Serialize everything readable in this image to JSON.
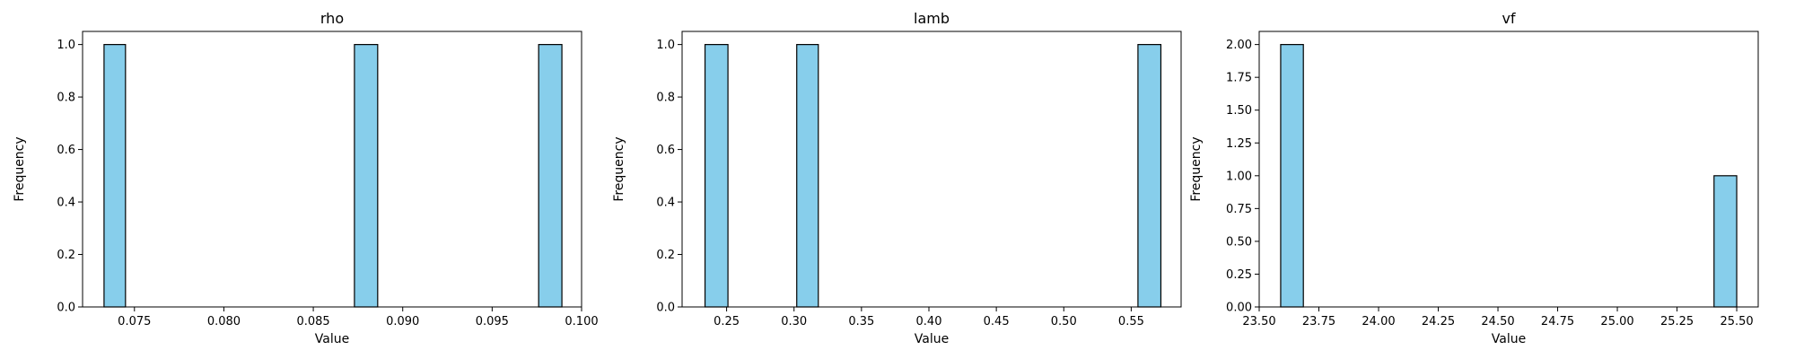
{
  "chart_data": [
    {
      "type": "bar",
      "title": "rho",
      "xlabel": "Value",
      "ylabel": "Frequency",
      "xlim": [
        0.0721,
        0.1
      ],
      "ylim": [
        0,
        1.05
      ],
      "xticks": [
        {
          "value": 0.075,
          "label": "0.075"
        },
        {
          "value": 0.08,
          "label": "0.080"
        },
        {
          "value": 0.085,
          "label": "0.085"
        },
        {
          "value": 0.09,
          "label": "0.090"
        },
        {
          "value": 0.095,
          "label": "0.095"
        },
        {
          "value": 0.1,
          "label": "0.100"
        }
      ],
      "yticks": [
        {
          "value": 0.0,
          "label": "0.0"
        },
        {
          "value": 0.2,
          "label": "0.2"
        },
        {
          "value": 0.4,
          "label": "0.4"
        },
        {
          "value": 0.6,
          "label": "0.6"
        },
        {
          "value": 0.8,
          "label": "0.8"
        },
        {
          "value": 1.0,
          "label": "1.0"
        }
      ],
      "bins": [
        {
          "start": 0.0733,
          "end": 0.0745,
          "count": 1
        },
        {
          "start": 0.0873,
          "end": 0.0886,
          "count": 1
        },
        {
          "start": 0.0976,
          "end": 0.0989,
          "count": 1
        }
      ],
      "bar_color": "#87CEEB",
      "edge_color": "#000000",
      "grid": false
    },
    {
      "type": "bar",
      "title": "lamb",
      "xlabel": "Value",
      "ylabel": "Frequency",
      "xlim": [
        0.217,
        0.587
      ],
      "ylim": [
        0,
        1.05
      ],
      "xticks": [
        {
          "value": 0.25,
          "label": "0.25"
        },
        {
          "value": 0.3,
          "label": "0.30"
        },
        {
          "value": 0.35,
          "label": "0.35"
        },
        {
          "value": 0.4,
          "label": "0.40"
        },
        {
          "value": 0.45,
          "label": "0.45"
        },
        {
          "value": 0.5,
          "label": "0.50"
        },
        {
          "value": 0.55,
          "label": "0.55"
        }
      ],
      "yticks": [
        {
          "value": 0.0,
          "label": "0.0"
        },
        {
          "value": 0.2,
          "label": "0.2"
        },
        {
          "value": 0.4,
          "label": "0.4"
        },
        {
          "value": 0.6,
          "label": "0.6"
        },
        {
          "value": 0.8,
          "label": "0.8"
        },
        {
          "value": 1.0,
          "label": "1.0"
        }
      ],
      "bins": [
        {
          "start": 0.234,
          "end": 0.251,
          "count": 1
        },
        {
          "start": 0.302,
          "end": 0.318,
          "count": 1
        },
        {
          "start": 0.555,
          "end": 0.572,
          "count": 1
        }
      ],
      "bar_color": "#87CEEB",
      "edge_color": "#000000",
      "grid": false
    },
    {
      "type": "bar",
      "title": "vf",
      "xlabel": "Value",
      "ylabel": "Frequency",
      "xlim": [
        23.5,
        25.59
      ],
      "ylim": [
        0,
        2.1
      ],
      "xticks": [
        {
          "value": 23.5,
          "label": "23.50"
        },
        {
          "value": 23.75,
          "label": "23.75"
        },
        {
          "value": 24.0,
          "label": "24.00"
        },
        {
          "value": 24.25,
          "label": "24.25"
        },
        {
          "value": 24.5,
          "label": "24.50"
        },
        {
          "value": 24.75,
          "label": "24.75"
        },
        {
          "value": 25.0,
          "label": "25.00"
        },
        {
          "value": 25.25,
          "label": "25.25"
        },
        {
          "value": 25.5,
          "label": "25.50"
        }
      ],
      "yticks": [
        {
          "value": 0.0,
          "label": "0.00"
        },
        {
          "value": 0.25,
          "label": "0.25"
        },
        {
          "value": 0.5,
          "label": "0.50"
        },
        {
          "value": 0.75,
          "label": "0.75"
        },
        {
          "value": 1.0,
          "label": "1.00"
        },
        {
          "value": 1.25,
          "label": "1.25"
        },
        {
          "value": 1.5,
          "label": "1.50"
        },
        {
          "value": 1.75,
          "label": "1.75"
        },
        {
          "value": 2.0,
          "label": "2.00"
        }
      ],
      "bins": [
        {
          "start": 23.59,
          "end": 23.685,
          "count": 2
        },
        {
          "start": 25.405,
          "end": 25.5,
          "count": 1
        }
      ],
      "bar_color": "#87CEEB",
      "edge_color": "#000000",
      "grid": false
    }
  ]
}
